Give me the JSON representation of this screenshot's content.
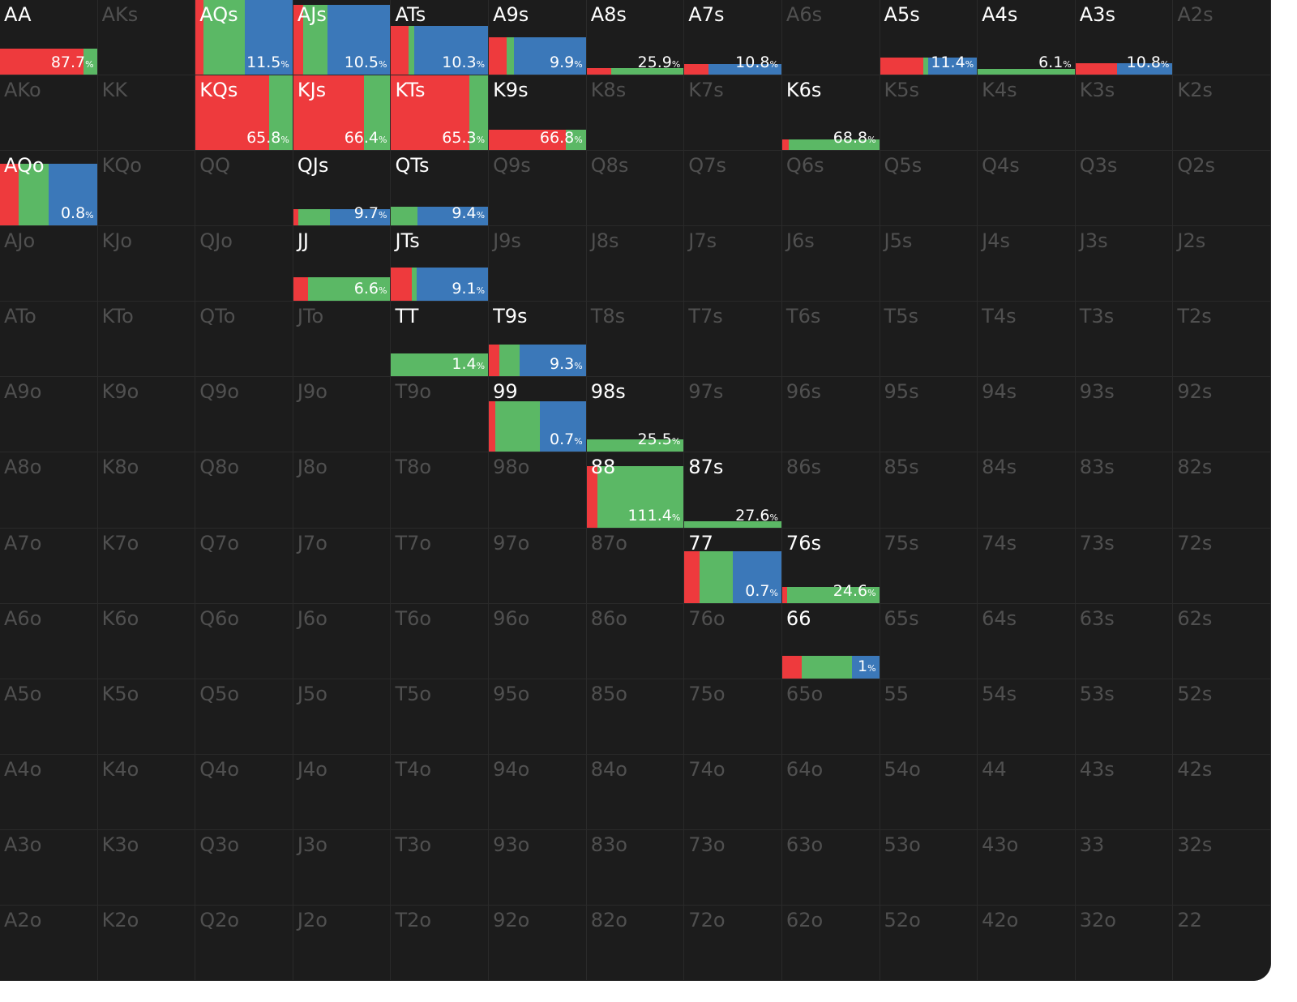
{
  "colors": {
    "red": "#ee3a3d",
    "green": "#5bb865",
    "blue": "#3b78b9",
    "active_text": "#ffffff",
    "inactive_text": "#505050",
    "background": "#1c1c1c"
  },
  "hands": [
    [
      "AA",
      "AKs",
      "AQs",
      "AJs",
      "ATs",
      "A9s",
      "A8s",
      "A7s",
      "A6s",
      "A5s",
      "A4s",
      "A3s",
      "A2s"
    ],
    [
      "AKo",
      "KK",
      "KQs",
      "KJs",
      "KTs",
      "K9s",
      "K8s",
      "K7s",
      "K6s",
      "K5s",
      "K4s",
      "K3s",
      "K2s"
    ],
    [
      "AQo",
      "KQo",
      "QQ",
      "QJs",
      "QTs",
      "Q9s",
      "Q8s",
      "Q7s",
      "Q6s",
      "Q5s",
      "Q4s",
      "Q3s",
      "Q2s"
    ],
    [
      "AJo",
      "KJo",
      "QJo",
      "JJ",
      "JTs",
      "J9s",
      "J8s",
      "J7s",
      "J6s",
      "J5s",
      "J4s",
      "J3s",
      "J2s"
    ],
    [
      "ATo",
      "KTo",
      "QTo",
      "JTo",
      "TT",
      "T9s",
      "T8s",
      "T7s",
      "T6s",
      "T5s",
      "T4s",
      "T3s",
      "T2s"
    ],
    [
      "A9o",
      "K9o",
      "Q9o",
      "J9o",
      "T9o",
      "99",
      "98s",
      "97s",
      "96s",
      "95s",
      "94s",
      "93s",
      "92s"
    ],
    [
      "A8o",
      "K8o",
      "Q8o",
      "J8o",
      "T8o",
      "98o",
      "88",
      "87s",
      "86s",
      "85s",
      "84s",
      "83s",
      "82s"
    ],
    [
      "A7o",
      "K7o",
      "Q7o",
      "J7o",
      "T7o",
      "97o",
      "87o",
      "77",
      "76s",
      "75s",
      "74s",
      "73s",
      "72s"
    ],
    [
      "A6o",
      "K6o",
      "Q6o",
      "J6o",
      "T6o",
      "96o",
      "86o",
      "76o",
      "66",
      "65s",
      "64s",
      "63s",
      "62s"
    ],
    [
      "A5o",
      "K5o",
      "Q5o",
      "J5o",
      "T5o",
      "95o",
      "85o",
      "75o",
      "65o",
      "55",
      "54s",
      "53s",
      "52s"
    ],
    [
      "A4o",
      "K4o",
      "Q4o",
      "J4o",
      "T4o",
      "94o",
      "84o",
      "74o",
      "64o",
      "54o",
      "44",
      "43s",
      "42s"
    ],
    [
      "A3o",
      "K3o",
      "Q3o",
      "J3o",
      "T3o",
      "93o",
      "83o",
      "73o",
      "63o",
      "53o",
      "43o",
      "33",
      "32s"
    ],
    [
      "A2o",
      "K2o",
      "Q2o",
      "J2o",
      "T2o",
      "92o",
      "82o",
      "72o",
      "62o",
      "52o",
      "42o",
      "32o",
      "22"
    ]
  ],
  "cells": {
    "AA": {
      "active": true,
      "pct": "87.7",
      "unit": "%",
      "freq": 0.35,
      "mix": [
        0.86,
        0.14,
        0.0
      ]
    },
    "AQs": {
      "active": true,
      "pct": "11.5",
      "unit": "%",
      "freq": 1.0,
      "mix": [
        0.08,
        0.43,
        0.49
      ]
    },
    "AJs": {
      "active": true,
      "pct": "10.5",
      "unit": "%",
      "freq": 0.93,
      "mix": [
        0.1,
        0.25,
        0.65
      ]
    },
    "ATs": {
      "active": true,
      "pct": "10.3",
      "unit": "%",
      "freq": 0.65,
      "mix": [
        0.18,
        0.06,
        0.76
      ]
    },
    "A9s": {
      "active": true,
      "pct": "9.9",
      "unit": "%",
      "freq": 0.5,
      "mix": [
        0.18,
        0.08,
        0.74
      ]
    },
    "A8s": {
      "active": true,
      "pct": "25.9",
      "unit": "%",
      "freq": 0.09,
      "mix": [
        0.25,
        0.75,
        0.0
      ]
    },
    "A7s": {
      "active": true,
      "pct": "10.8",
      "unit": "%",
      "freq": 0.14,
      "mix": [
        0.25,
        0.0,
        0.75
      ]
    },
    "A6s": {
      "active": false
    },
    "A5s": {
      "active": true,
      "pct": "11.4",
      "unit": "%",
      "freq": 0.23,
      "mix": [
        0.45,
        0.05,
        0.5
      ]
    },
    "A4s": {
      "active": true,
      "pct": "6.1",
      "unit": "%",
      "freq": 0.08,
      "mix": [
        0.0,
        1.0,
        0.0
      ]
    },
    "A3s": {
      "active": true,
      "pct": "10.8",
      "unit": "%",
      "freq": 0.15,
      "mix": [
        0.43,
        0.0,
        0.57
      ]
    },
    "KQs": {
      "active": true,
      "pct": "65.8",
      "unit": "%",
      "freq": 1.0,
      "mix": [
        0.76,
        0.24,
        0.0
      ]
    },
    "KJs": {
      "active": true,
      "pct": "66.4",
      "unit": "%",
      "freq": 1.0,
      "mix": [
        0.73,
        0.27,
        0.0
      ]
    },
    "KTs": {
      "active": true,
      "pct": "65.3",
      "unit": "%",
      "freq": 1.0,
      "mix": [
        0.81,
        0.19,
        0.0
      ]
    },
    "K9s": {
      "active": true,
      "pct": "66.8",
      "unit": "%",
      "freq": 0.27,
      "mix": [
        0.79,
        0.21,
        0.0
      ]
    },
    "K6s": {
      "active": true,
      "pct": "68.8",
      "unit": "%",
      "freq": 0.14,
      "mix": [
        0.07,
        0.93,
        0.0
      ]
    },
    "AQo": {
      "active": true,
      "pct": "0.8",
      "unit": "%",
      "freq": 0.83,
      "mix": [
        0.19,
        0.31,
        0.5
      ]
    },
    "QJs": {
      "active": true,
      "pct": "9.7",
      "unit": "%",
      "freq": 0.22,
      "mix": [
        0.05,
        0.33,
        0.62
      ]
    },
    "QTs": {
      "active": true,
      "pct": "9.4",
      "unit": "%",
      "freq": 0.25,
      "mix": [
        0.0,
        0.27,
        0.73
      ]
    },
    "JJ": {
      "active": true,
      "pct": "6.6",
      "unit": "%",
      "freq": 0.31,
      "mix": [
        0.15,
        0.85,
        0.0
      ]
    },
    "JTs": {
      "active": true,
      "pct": "9.1",
      "unit": "%",
      "freq": 0.45,
      "mix": [
        0.21,
        0.05,
        0.74
      ]
    },
    "TT": {
      "active": true,
      "pct": "1.4",
      "unit": "%",
      "freq": 0.3,
      "mix": [
        0.0,
        1.0,
        0.0
      ]
    },
    "T9s": {
      "active": true,
      "pct": "9.3",
      "unit": "%",
      "freq": 0.42,
      "mix": [
        0.11,
        0.21,
        0.68
      ]
    },
    "99": {
      "active": true,
      "pct": "0.7",
      "unit": "%",
      "freq": 0.67,
      "mix": [
        0.07,
        0.46,
        0.47
      ]
    },
    "98s": {
      "active": true,
      "pct": "25.5",
      "unit": "%",
      "freq": 0.16,
      "mix": [
        0.0,
        1.0,
        0.0
      ]
    },
    "88": {
      "active": true,
      "pct": "111.4",
      "unit": "%",
      "freq": 0.83,
      "mix": [
        0.11,
        0.89,
        0.0
      ]
    },
    "87s": {
      "active": true,
      "pct": "27.6",
      "unit": "%",
      "freq": 0.09,
      "mix": [
        0.0,
        1.0,
        0.0
      ]
    },
    "77": {
      "active": true,
      "pct": "0.7",
      "unit": "%",
      "freq": 0.7,
      "mix": [
        0.16,
        0.34,
        0.5
      ]
    },
    "76s": {
      "active": true,
      "pct": "24.6",
      "unit": "%",
      "freq": 0.22,
      "mix": [
        0.05,
        0.95,
        0.0
      ]
    },
    "66": {
      "active": true,
      "pct": "1",
      "unit": "%",
      "freq": 0.3,
      "mix": [
        0.2,
        0.52,
        0.28
      ]
    }
  }
}
